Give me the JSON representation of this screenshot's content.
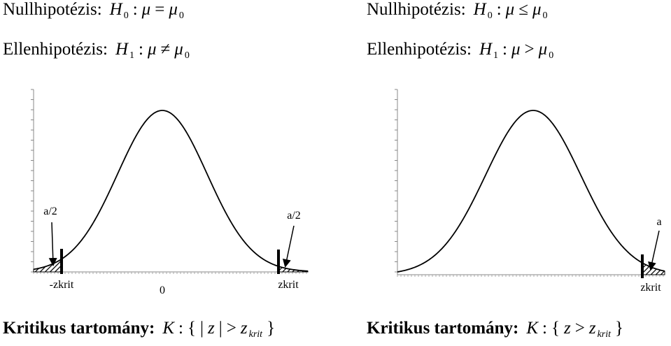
{
  "left": {
    "null_hypothesis": {
      "label": "Nullhipotézis:",
      "tokens": [
        {
          "text": "H",
          "sub": "0"
        },
        {
          "text": ":"
        },
        {
          "text": "μ"
        },
        {
          "text": "="
        },
        {
          "text": "μ",
          "sub": "0"
        }
      ]
    },
    "alt_hypothesis": {
      "label": "Ellenhipotézis:",
      "tokens": [
        {
          "text": "H",
          "sub": "1"
        },
        {
          "text": ":"
        },
        {
          "text": "μ"
        },
        {
          "text": "≠"
        },
        {
          "text": "μ",
          "sub": "0"
        }
      ]
    },
    "labels": {
      "alpha_left": "a/2",
      "alpha_right": "a/2",
      "neg_crit": "-zkrit",
      "zero": "0",
      "pos_crit": "zkrit"
    },
    "critical_region": {
      "label": "Kritikus tartomány:",
      "tokens": [
        {
          "text": "K"
        },
        {
          "text": ":"
        },
        {
          "text": "{"
        },
        {
          "text": "|"
        },
        {
          "text": "z"
        },
        {
          "text": "|"
        },
        {
          "text": ">"
        },
        {
          "text": "z",
          "sub": "krit"
        },
        {
          "text": "}"
        }
      ]
    }
  },
  "right": {
    "null_hypothesis": {
      "label": "Nullhipotézis:",
      "tokens": [
        {
          "text": "H",
          "sub": "0"
        },
        {
          "text": ":"
        },
        {
          "text": "μ"
        },
        {
          "text": "≤"
        },
        {
          "text": "μ",
          "sub": "0"
        }
      ]
    },
    "alt_hypothesis": {
      "label": "Ellenhipotézis:",
      "tokens": [
        {
          "text": "H",
          "sub": "1"
        },
        {
          "text": ":"
        },
        {
          "text": "μ"
        },
        {
          "text": ">"
        },
        {
          "text": "μ",
          "sub": "0"
        }
      ]
    },
    "labels": {
      "alpha": "a",
      "pos_crit": "zkrit"
    },
    "critical_region": {
      "label": "Kritikus tartomány:",
      "tokens": [
        {
          "text": "K"
        },
        {
          "text": ":"
        },
        {
          "text": "{"
        },
        {
          "text": "z"
        },
        {
          "text": ">"
        },
        {
          "text": "z",
          "sub": "krit"
        },
        {
          "text": "}"
        }
      ]
    }
  }
}
